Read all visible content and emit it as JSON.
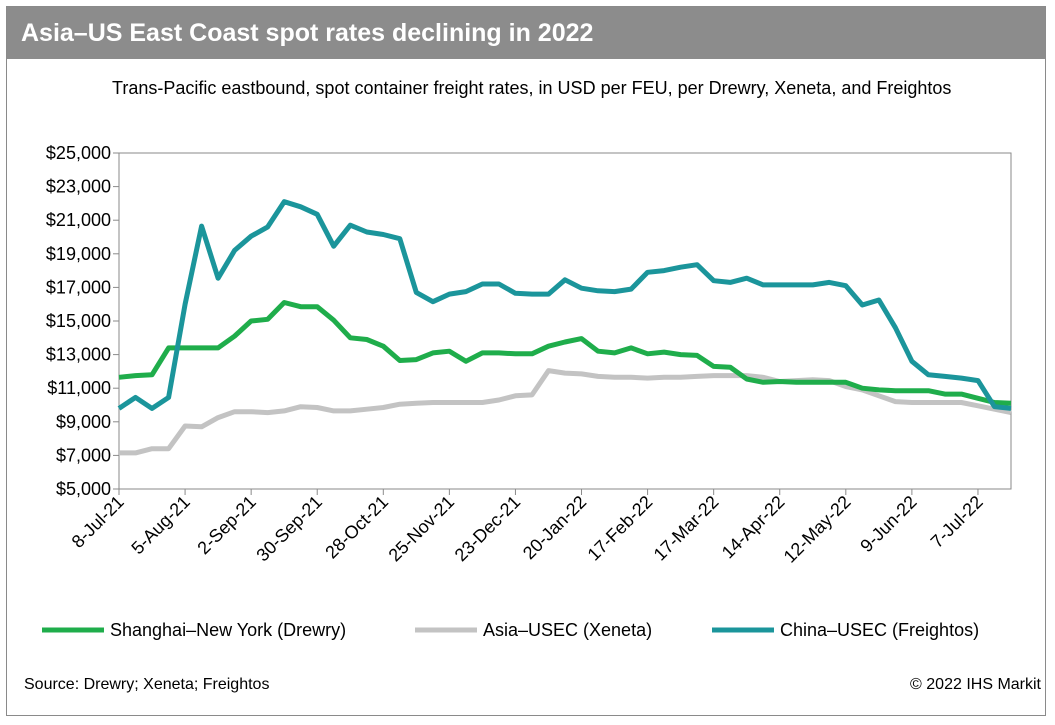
{
  "title": "Asia–US East Coast spot rates declining in 2022",
  "source": "Source: Drewry; Xeneta; Freightos",
  "copyright": "© 2022 IHS Markit",
  "colors": {
    "title_bar": "#8c8c8c",
    "shanghai": "#1fad4b",
    "asia": "#c3c3c3",
    "china": "#1b959b"
  },
  "chart_data": {
    "type": "line",
    "title": "",
    "subtitle": "Trans-Pacific eastbound, spot container freight rates, in USD per FEU, per Drewry, Xeneta, and Freightos",
    "xlabel": "",
    "ylabel": "",
    "ylim": [
      5000,
      25000
    ],
    "y_ticks": [
      5000,
      7000,
      9000,
      11000,
      13000,
      15000,
      17000,
      19000,
      21000,
      23000,
      25000
    ],
    "y_tick_labels": [
      "$5,000",
      "$7,000",
      "$9,000",
      "$11,000",
      "$13,000",
      "$15,000",
      "$17,000",
      "$19,000",
      "$21,000",
      "$23,000",
      "$25,000"
    ],
    "x_tick_labels": [
      "8-Jul-21",
      "5-Aug-21",
      "2-Sep-21",
      "30-Sep-21",
      "28-Oct-21",
      "25-Nov-21",
      "23-Dec-21",
      "20-Jan-22",
      "17-Feb-22",
      "17-Mar-22",
      "14-Apr-22",
      "12-May-22",
      "9-Jun-22",
      "7-Jul-22"
    ],
    "x_start": "2021-07-08",
    "x_step_weeks": 1,
    "grid": false,
    "legend_position": "bottom",
    "series": [
      {
        "name": "Shanghai–New York (Drewry)",
        "color": "#1fad4b",
        "values": [
          11650,
          11750,
          11800,
          13400,
          13400,
          13400,
          13400,
          14100,
          15000,
          15100,
          16100,
          15850,
          15850,
          15050,
          14000,
          13900,
          13500,
          12650,
          12700,
          13100,
          13200,
          12600,
          13100,
          13100,
          13050,
          13050,
          13500,
          13750,
          13950,
          13200,
          13100,
          13400,
          13050,
          13150,
          13000,
          12950,
          12300,
          12250,
          11550,
          11350,
          11400,
          11350,
          11350,
          11350,
          11350,
          11000,
          10900,
          10850,
          10850,
          10850,
          10650,
          10650,
          10400,
          10150,
          10100
        ]
      },
      {
        "name": "Asia–USEC (Xeneta)",
        "color": "#c3c3c3",
        "values": [
          7150,
          7150,
          7400,
          7400,
          8750,
          8700,
          9250,
          9600,
          9600,
          9550,
          9650,
          9900,
          9850,
          9650,
          9650,
          9750,
          9850,
          10050,
          10100,
          10150,
          10150,
          10150,
          10150,
          10300,
          10550,
          10600,
          12050,
          11900,
          11850,
          11700,
          11650,
          11650,
          11600,
          11650,
          11650,
          11700,
          11750,
          11750,
          11750,
          11650,
          11400,
          11450,
          11500,
          11450,
          11100,
          10900,
          10550,
          10200,
          10150,
          10150,
          10150,
          10150,
          9950,
          9750,
          9550
        ]
      },
      {
        "name": "China–USEC (Freightos)",
        "color": "#1b959b",
        "values": [
          9800,
          10450,
          9800,
          10450,
          16000,
          20650,
          17550,
          19200,
          20050,
          20600,
          22100,
          21800,
          21350,
          19450,
          20700,
          20300,
          20150,
          19900,
          16700,
          16150,
          16600,
          16750,
          17200,
          17200,
          16650,
          16600,
          16600,
          17450,
          16950,
          16800,
          16750,
          16900,
          17900,
          18000,
          18200,
          18350,
          17400,
          17300,
          17550,
          17150,
          17150,
          17150,
          17150,
          17300,
          17100,
          15950,
          16250,
          14600,
          12600,
          11800,
          11700,
          11600,
          11450,
          9900,
          9800
        ]
      }
    ]
  }
}
